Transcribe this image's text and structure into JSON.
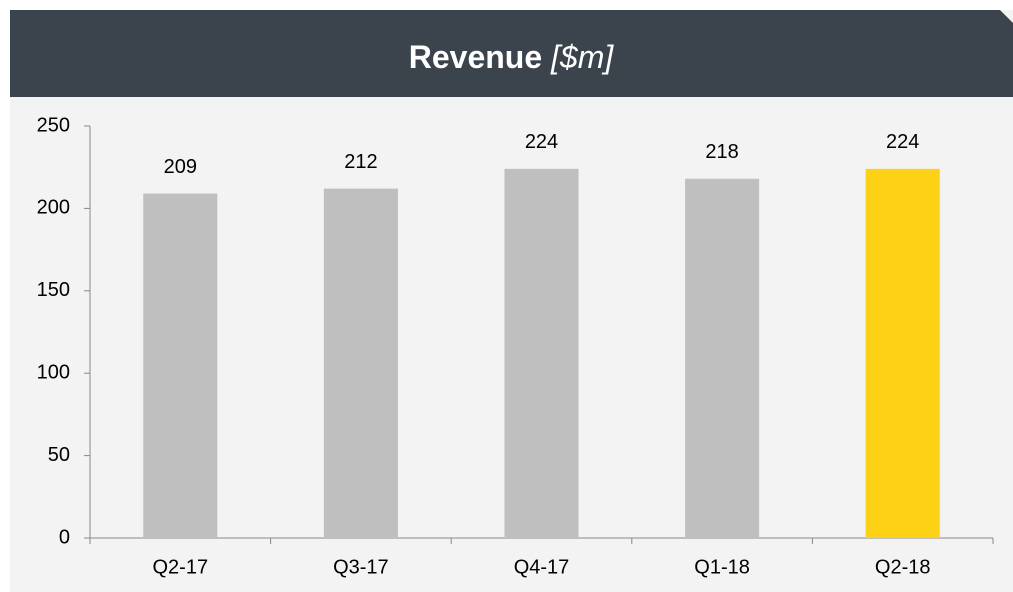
{
  "chart_data": {
    "type": "bar",
    "title": "Revenue",
    "title_unit": "[$m]",
    "categories": [
      "Q2-17",
      "Q3-17",
      "Q4-17",
      "Q1-18",
      "Q2-18"
    ],
    "values": [
      209,
      212,
      224,
      218,
      224
    ],
    "colors": [
      "#bfbfbf",
      "#bfbfbf",
      "#bfbfbf",
      "#bfbfbf",
      "#fcd116"
    ],
    "ylim": [
      0,
      250
    ],
    "yticks": [
      0,
      50,
      100,
      150,
      200,
      250
    ],
    "grid": false
  }
}
